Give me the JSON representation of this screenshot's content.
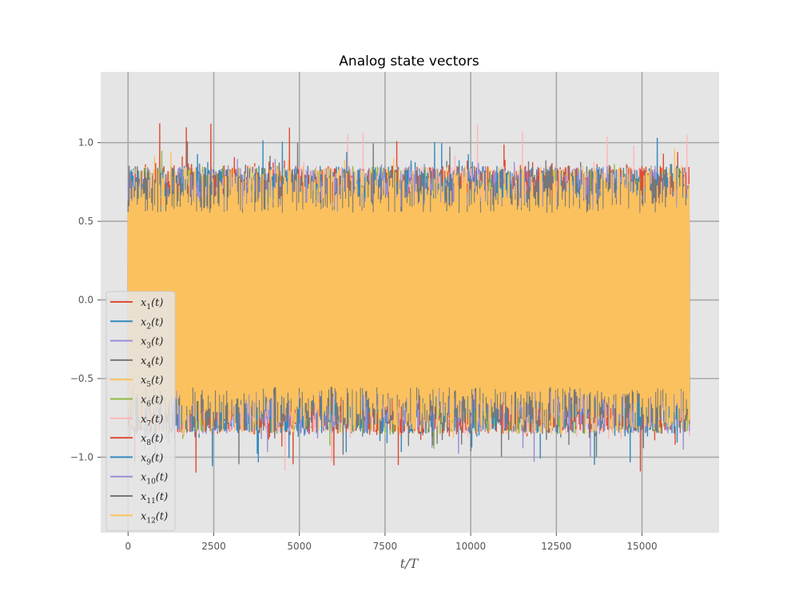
{
  "chart_data": {
    "type": "line",
    "title": "Analog state vectors",
    "xlabel": "t/T",
    "ylabel": "",
    "xlim": [
      -800,
      17250
    ],
    "ylim": [
      -1.48,
      1.45
    ],
    "x_range": [
      0,
      16384
    ],
    "xticks": [
      0,
      2500,
      5000,
      7500,
      10000,
      12500,
      15000
    ],
    "xtick_labels": [
      "0",
      "2500",
      "5000",
      "7500",
      "10000",
      "12500",
      "15000"
    ],
    "yticks": [
      -1.0,
      -0.5,
      0.0,
      0.5,
      1.0
    ],
    "ytick_labels": [
      "−1.0",
      "−0.5",
      "0.0",
      "0.5",
      "1.0"
    ],
    "grid": true,
    "style": "ggplot",
    "legend_position": "center-left",
    "series": [
      {
        "name": "x1(t)",
        "label_base": "x",
        "label_sub": "1",
        "label_suffix": "(t)",
        "color": "#E24A33",
        "amplitude": 1.05,
        "seed": 11
      },
      {
        "name": "x2(t)",
        "label_base": "x",
        "label_sub": "2",
        "label_suffix": "(t)",
        "color": "#348ABD",
        "amplitude": 1.0,
        "seed": 23
      },
      {
        "name": "x3(t)",
        "label_base": "x",
        "label_sub": "3",
        "label_suffix": "(t)",
        "color": "#988ED5",
        "amplitude": 0.95,
        "seed": 37
      },
      {
        "name": "x4(t)",
        "label_base": "x",
        "label_sub": "4",
        "label_suffix": "(t)",
        "color": "#777777",
        "amplitude": 0.95,
        "seed": 41
      },
      {
        "name": "x5(t)",
        "label_base": "x",
        "label_sub": "5",
        "label_suffix": "(t)",
        "color": "#FBC15E",
        "amplitude": 0.9,
        "seed": 53
      },
      {
        "name": "x6(t)",
        "label_base": "x",
        "label_sub": "6",
        "label_suffix": "(t)",
        "color": "#8EBA42",
        "amplitude": 0.88,
        "seed": 67
      },
      {
        "name": "x7(t)",
        "label_base": "x",
        "label_sub": "7",
        "label_suffix": "(t)",
        "color": "#FFB5B8",
        "amplitude": 1.05,
        "seed": 71
      },
      {
        "name": "x8(t)",
        "label_base": "x",
        "label_sub": "8",
        "label_suffix": "(t)",
        "color": "#E24A33",
        "amplitude": 1.05,
        "seed": 83
      },
      {
        "name": "x9(t)",
        "label_base": "x",
        "label_sub": "9",
        "label_suffix": "(t)",
        "color": "#348ABD",
        "amplitude": 0.98,
        "seed": 97
      },
      {
        "name": "x10(t)",
        "label_base": "x",
        "label_sub": "10",
        "label_suffix": "(t)",
        "color": "#988ED5",
        "amplitude": 0.95,
        "seed": 101
      },
      {
        "name": "x11(t)",
        "label_base": "x",
        "label_sub": "11",
        "label_suffix": "(t)",
        "color": "#777777",
        "amplitude": 1.0,
        "seed": 113
      },
      {
        "name": "x12(t)",
        "label_base": "x",
        "label_sub": "12",
        "label_suffix": "(t)",
        "color": "#FBC15E",
        "amplitude": 0.85,
        "seed": 127
      }
    ]
  }
}
